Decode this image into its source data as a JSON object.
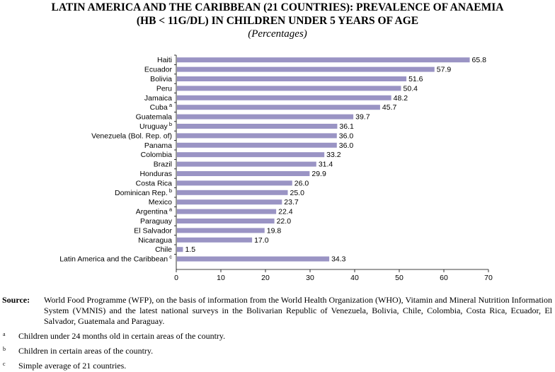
{
  "chart_data": {
    "type": "bar",
    "orientation": "horizontal",
    "title_line1": "LATIN AMERICA AND THE CARIBBEAN (21 COUNTRIES): PREVALENCE OF ANAEMIA",
    "title_line2": "(HB < 11G/DL) IN CHILDREN UNDER 5 YEARS OF AGE",
    "subtitle": "(Percentages)",
    "categories": [
      "Haiti",
      "Ecuador",
      "Bolivia",
      "Peru",
      "Jamaica",
      "Cuba",
      "Guatemala",
      "Uruguay",
      "Venezuela (Bol. Rep. of)",
      "Panama",
      "Colombia",
      "Brazil",
      "Honduras",
      "Costa Rica",
      "Dominican Rep.",
      "Mexico",
      "Argentina",
      "Paraguay",
      "El Salvador",
      "Nicaragua",
      "Chile",
      "Latin America and the Caribbean"
    ],
    "category_markers": [
      "",
      "",
      "",
      "",
      "",
      "a",
      "",
      "b",
      "",
      "",
      "",
      "",
      "",
      "",
      "b",
      "",
      "a",
      "",
      "",
      "",
      "",
      "c"
    ],
    "values": [
      65.8,
      57.9,
      51.6,
      50.4,
      48.2,
      45.7,
      39.7,
      36.1,
      36.0,
      36.0,
      33.2,
      31.4,
      29.9,
      26.0,
      25.0,
      23.7,
      22.4,
      22.0,
      19.8,
      17.0,
      1.5,
      34.3
    ],
    "value_labels": [
      "65.8",
      "57.9",
      "51.6",
      "50.4",
      "48.2",
      "45.7",
      "39.7",
      "36.1",
      "36.0",
      "36.0",
      "33.2",
      "31.4",
      "29.9",
      "26.0",
      "25.0",
      "23.7",
      "22.4",
      "22.0",
      "19.8",
      "17.0",
      "1.5",
      "34.3"
    ],
    "xlim": [
      0,
      70
    ],
    "xticks": [
      0,
      10,
      20,
      30,
      40,
      50,
      60,
      70
    ],
    "xlabel": "",
    "ylabel": "",
    "grid": false,
    "legend": "none",
    "bar_color": "#9a94c4"
  },
  "source": {
    "label": "Source:",
    "text": "World Food Programme (WFP), on the basis of information from the World Health Organization (WHO), Vitamin and Mineral Nutrition Information System (VMNIS) and the latest national surveys in the Bolivarian Republic of Venezuela, Bolivia, Chile, Colombia, Costa Rica, Ecuador, El Salvador, Guatemala and Paraguay."
  },
  "footnotes": [
    {
      "mark": "a",
      "text": "Children under 24 months old in certain areas of the country."
    },
    {
      "mark": "b",
      "text": "Children in certain areas of the country."
    },
    {
      "mark": "c",
      "text": "Simple average of 21 countries."
    }
  ]
}
